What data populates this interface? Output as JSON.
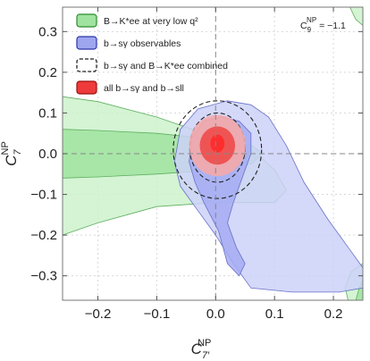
{
  "chart_data": {
    "type": "contour",
    "xlabel": "C",
    "xlabel_sup": "NP",
    "xlabel_sub": "7′",
    "ylabel": "C",
    "ylabel_sup": "NP",
    "ylabel_sub": "7",
    "xlim": [
      -0.26,
      0.25
    ],
    "ylim": [
      -0.36,
      0.36
    ],
    "x_ticks": [
      -0.2,
      -0.1,
      0.0,
      0.1,
      0.2
    ],
    "x_tick_labels": [
      "−0.2",
      "−0.1",
      "0.0",
      "0.1",
      "0.2"
    ],
    "y_ticks": [
      -0.3,
      -0.2,
      -0.1,
      0.0,
      0.1,
      0.2,
      0.3
    ],
    "y_tick_labels": [
      "−0.3",
      "−0.2",
      "−0.1",
      "0.0",
      "0.1",
      "0.2",
      "0.3"
    ],
    "grid": true,
    "legend_position": "top-left",
    "annotation": {
      "base": "C",
      "sup": "NP",
      "sub": "9",
      "value": " = −1.1"
    },
    "legend": [
      {
        "key": "bkee",
        "prefix": "B→",
        "label": "K*ee at very low q²",
        "swatch": "green"
      },
      {
        "key": "bsg",
        "label": "b→sγ observables",
        "swatch": "blue"
      },
      {
        "key": "comb",
        "label": "b→sγ and B→K*ee combined",
        "swatch": "dashed"
      },
      {
        "key": "all",
        "label": "all b→sγ and b→sll",
        "swatch": "red"
      }
    ],
    "series": [
      {
        "name": "B→K*ee at very low q²",
        "color_fill": "#9fe39f",
        "color_fill_light": "#ccf2cc",
        "color_stroke": "#5fae5f",
        "regions": [
          {
            "level": "2sigma",
            "points": [
              [
                -0.26,
                0.14
              ],
              [
                -0.2,
                0.128
              ],
              [
                -0.1,
                0.09
              ],
              [
                0.0,
                0.04
              ],
              [
                0.07,
                0.0
              ],
              [
                0.1,
                -0.04
              ],
              [
                0.12,
                -0.09
              ],
              [
                0.1,
                -0.12
              ],
              [
                0.0,
                -0.12
              ],
              [
                -0.1,
                -0.13
              ],
              [
                -0.2,
                -0.17
              ],
              [
                -0.26,
                -0.2
              ]
            ]
          },
          {
            "level": "1sigma",
            "points": [
              [
                -0.26,
                0.06
              ],
              [
                -0.2,
                0.057
              ],
              [
                -0.1,
                0.05
              ],
              [
                0.0,
                0.035
              ],
              [
                0.06,
                0.022
              ],
              [
                0.08,
                0.0
              ],
              [
                0.06,
                -0.025
              ],
              [
                0.0,
                -0.04
              ],
              [
                -0.1,
                -0.05
              ],
              [
                -0.2,
                -0.057
              ],
              [
                -0.26,
                -0.06
              ]
            ]
          },
          {
            "level": "2sigma",
            "points": [
              [
                0.225,
                -0.36
              ],
              [
                0.22,
                -0.33
              ],
              [
                0.23,
                -0.29
              ],
              [
                0.25,
                -0.27
              ],
              [
                0.25,
                -0.36
              ]
            ]
          },
          {
            "level": "1sigma",
            "points": [
              [
                0.238,
                -0.36
              ],
              [
                0.244,
                -0.33
              ],
              [
                0.25,
                -0.31
              ],
              [
                0.25,
                -0.36
              ]
            ]
          },
          {
            "level": "2sigma",
            "points": [
              [
                0.228,
                0.36
              ],
              [
                0.238,
                0.33
              ],
              [
                0.25,
                0.315
              ],
              [
                0.25,
                0.36
              ]
            ]
          }
        ]
      },
      {
        "name": "b→sγ observables",
        "color_fill": "#a5acf2",
        "color_fill_light": "#cdd1f8",
        "color_stroke": "#6870c8",
        "regions": [
          {
            "level": "2sigma",
            "points": [
              [
                0.02,
                0.13
              ],
              [
                0.06,
                0.12
              ],
              [
                0.09,
                0.09
              ],
              [
                0.12,
                0.02
              ],
              [
                0.15,
                -0.07
              ],
              [
                0.19,
                -0.16
              ],
              [
                0.23,
                -0.24
              ],
              [
                0.25,
                -0.28
              ],
              [
                0.25,
                -0.33
              ],
              [
                0.21,
                -0.34
              ],
              [
                0.13,
                -0.34
              ],
              [
                0.06,
                -0.33
              ],
              [
                0.03,
                -0.27
              ],
              [
                0.0,
                -0.2
              ],
              [
                -0.03,
                -0.14
              ],
              [
                -0.06,
                -0.08
              ],
              [
                -0.07,
                -0.02
              ],
              [
                -0.06,
                0.06
              ],
              [
                -0.03,
                0.11
              ]
            ]
          },
          {
            "level": "1sigma",
            "points": [
              [
                0.01,
                0.09
              ],
              [
                0.04,
                0.08
              ],
              [
                0.06,
                0.05
              ],
              [
                0.06,
                0.0
              ],
              [
                0.045,
                -0.06
              ],
              [
                0.03,
                -0.12
              ],
              [
                0.02,
                -0.17
              ],
              [
                0.035,
                -0.23
              ],
              [
                0.05,
                -0.27
              ],
              [
                0.04,
                -0.3
              ],
              [
                0.02,
                -0.27
              ],
              [
                0.005,
                -0.19
              ],
              [
                -0.02,
                -0.12
              ],
              [
                -0.035,
                -0.07
              ],
              [
                -0.045,
                -0.02
              ],
              [
                -0.04,
                0.04
              ],
              [
                -0.02,
                0.08
              ]
            ]
          }
        ]
      },
      {
        "name": "b→sγ and B→K*ee combined",
        "color_stroke": "#222222",
        "regions": [
          {
            "level": "2sigma",
            "center": [
              0.003,
              0.01
            ],
            "rx": 0.075,
            "ry": 0.12
          },
          {
            "level": "1sigma",
            "center": [
              0.003,
              0.015
            ],
            "rx": 0.047,
            "ry": 0.085
          }
        ]
      },
      {
        "name": "all b→sγ and b→sll",
        "color_fill": "#ee4a4a",
        "color_fill_light": "#f4a8a8",
        "regions": [
          {
            "level": "2sigma",
            "center": [
              0.003,
              0.02
            ],
            "rx": 0.048,
            "ry": 0.075
          },
          {
            "level": "1sigma",
            "center": [
              0.003,
              0.02
            ],
            "rx": 0.03,
            "ry": 0.047
          },
          {
            "level": "0.5sigma",
            "center": [
              0.003,
              0.025
            ],
            "rx": 0.012,
            "ry": 0.022
          }
        ]
      }
    ]
  }
}
